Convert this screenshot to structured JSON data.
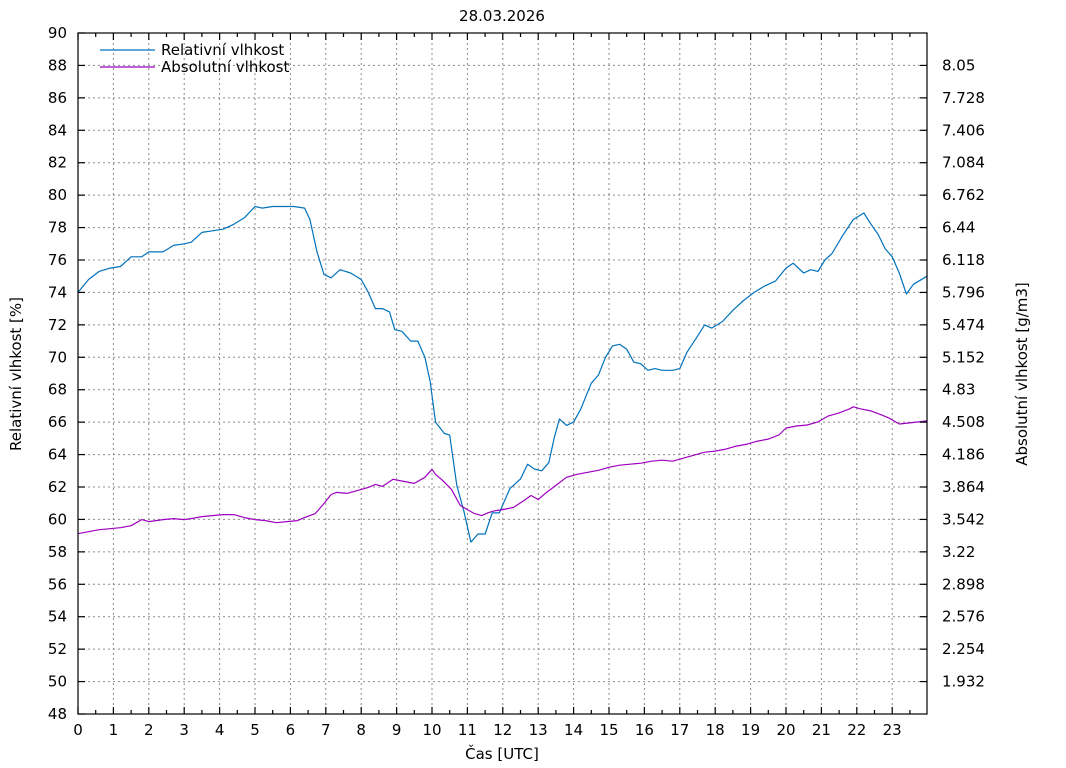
{
  "chart_data": {
    "type": "line",
    "title": "28.03.2026",
    "xlabel": "Čas [UTC]",
    "ylabel": "Relativní vlhkost [%]",
    "y2label": "Absolutní vlhkost [g/m3]",
    "xlim": [
      0,
      23.983
    ],
    "ylim": [
      48,
      90
    ],
    "y2lim": [
      1.61,
      8.372
    ],
    "grid": true,
    "legend_position": "top-left",
    "x_ticks": [
      "0",
      "1",
      "2",
      "3",
      "4",
      "5",
      "6",
      "7",
      "8",
      "9",
      "10",
      "11",
      "12",
      "13",
      "14",
      "15",
      "16",
      "17",
      "18",
      "19",
      "20",
      "21",
      "22",
      "23"
    ],
    "y_ticks": [
      "48",
      "50",
      "52",
      "54",
      "56",
      "58",
      "60",
      "62",
      "64",
      "66",
      "68",
      "70",
      "72",
      "74",
      "76",
      "78",
      "80",
      "82",
      "84",
      "86",
      "88",
      "90"
    ],
    "y2_ticks": [
      "1.932",
      "2.254",
      "2.576",
      "2.898",
      "3.22",
      "3.542",
      "3.864",
      "4.186",
      "4.508",
      "4.83",
      "5.152",
      "5.474",
      "5.796",
      "6.118",
      "6.44",
      "6.762",
      "7.084",
      "7.406",
      "7.728",
      "8.05"
    ],
    "series": [
      {
        "name": "Relativní vlhkost",
        "color": "#0072bd",
        "axis": "left",
        "x": [
          0,
          0.3,
          0.6,
          0.9,
          1.2,
          1.5,
          1.8,
          2.0,
          2.4,
          2.7,
          3.0,
          3.2,
          3.5,
          3.8,
          4.1,
          4.4,
          4.7,
          5.0,
          5.2,
          5.5,
          5.8,
          6.1,
          6.4,
          6.55,
          6.75,
          6.95,
          7.15,
          7.4,
          7.7,
          8.0,
          8.2,
          8.4,
          8.6,
          8.8,
          8.95,
          9.15,
          9.4,
          9.6,
          9.8,
          9.95,
          10.1,
          10.35,
          10.5,
          10.7,
          10.9,
          11.1,
          11.3,
          11.5,
          11.7,
          11.9,
          12.2,
          12.5,
          12.7,
          12.9,
          13.1,
          13.3,
          13.45,
          13.6,
          13.8,
          14.0,
          14.2,
          14.5,
          14.7,
          14.9,
          15.1,
          15.3,
          15.5,
          15.7,
          15.9,
          16.1,
          16.3,
          16.5,
          16.8,
          17.0,
          17.2,
          17.5,
          17.7,
          17.9,
          18.2,
          18.5,
          18.8,
          19.1,
          19.4,
          19.7,
          20.0,
          20.2,
          20.5,
          20.7,
          20.9,
          21.1,
          21.3,
          21.6,
          21.9,
          22.2,
          22.4,
          22.6,
          22.8,
          23.0,
          23.2,
          23.4,
          23.6,
          23.983
        ],
        "y": [
          74.0,
          74.8,
          75.3,
          75.5,
          75.6,
          76.2,
          76.2,
          76.5,
          76.5,
          76.9,
          77.0,
          77.1,
          77.7,
          77.8,
          77.9,
          78.2,
          78.6,
          79.3,
          79.2,
          79.3,
          79.3,
          79.3,
          79.2,
          78.5,
          76.5,
          75.1,
          74.9,
          75.4,
          75.2,
          74.8,
          74.0,
          73.0,
          73.0,
          72.8,
          71.7,
          71.6,
          71.0,
          71.0,
          70.0,
          68.5,
          66.0,
          65.3,
          65.2,
          62.1,
          60.5,
          58.6,
          59.1,
          59.1,
          60.4,
          60.4,
          61.9,
          62.5,
          63.4,
          63.1,
          63.0,
          63.5,
          65.0,
          66.2,
          65.8,
          66.0,
          66.8,
          68.4,
          68.9,
          70.0,
          70.7,
          70.8,
          70.5,
          69.7,
          69.6,
          69.2,
          69.3,
          69.2,
          69.2,
          69.3,
          70.3,
          71.3,
          72.0,
          71.8,
          72.2,
          72.9,
          73.5,
          74.0,
          74.4,
          74.7,
          75.5,
          75.8,
          75.2,
          75.4,
          75.3,
          76.0,
          76.4,
          77.5,
          78.5,
          78.9,
          78.2,
          77.6,
          76.7,
          76.2,
          75.2,
          73.9,
          74.5,
          75.0
        ]
      },
      {
        "name": "Absolutní vlhkost",
        "color": "#9f00bf",
        "axis": "right",
        "x": [
          0,
          0.3,
          0.6,
          0.9,
          1.2,
          1.5,
          1.8,
          2.0,
          2.4,
          2.7,
          3.0,
          3.2,
          3.5,
          3.8,
          4.1,
          4.4,
          4.7,
          5.0,
          5.3,
          5.6,
          5.9,
          6.2,
          6.4,
          6.7,
          6.95,
          7.15,
          7.3,
          7.6,
          7.9,
          8.2,
          8.4,
          8.6,
          8.9,
          9.2,
          9.5,
          9.8,
          10.0,
          10.1,
          10.3,
          10.55,
          10.8,
          11.0,
          11.2,
          11.4,
          11.6,
          11.8,
          12.0,
          12.3,
          12.6,
          12.8,
          13.0,
          13.2,
          13.5,
          13.8,
          14.1,
          14.4,
          14.7,
          15.0,
          15.3,
          15.6,
          15.9,
          16.2,
          16.5,
          16.8,
          17.1,
          17.4,
          17.7,
          18.0,
          18.3,
          18.6,
          18.9,
          19.2,
          19.5,
          19.8,
          20.0,
          20.3,
          20.6,
          20.9,
          21.2,
          21.5,
          21.8,
          21.9,
          22.1,
          22.4,
          22.7,
          22.9,
          23.2,
          23.5,
          23.983
        ],
        "y": [
          3.4,
          3.42,
          3.44,
          3.45,
          3.46,
          3.48,
          3.54,
          3.52,
          3.54,
          3.55,
          3.54,
          3.55,
          3.57,
          3.58,
          3.59,
          3.59,
          3.56,
          3.54,
          3.53,
          3.51,
          3.52,
          3.53,
          3.56,
          3.6,
          3.7,
          3.79,
          3.81,
          3.8,
          3.83,
          3.86,
          3.89,
          3.87,
          3.94,
          3.92,
          3.9,
          3.96,
          4.04,
          3.99,
          3.93,
          3.84,
          3.68,
          3.64,
          3.6,
          3.58,
          3.61,
          3.63,
          3.64,
          3.66,
          3.73,
          3.78,
          3.74,
          3.8,
          3.88,
          3.96,
          3.99,
          4.01,
          4.03,
          4.06,
          4.08,
          4.09,
          4.1,
          4.12,
          4.13,
          4.12,
          4.15,
          4.18,
          4.21,
          4.22,
          4.24,
          4.27,
          4.29,
          4.32,
          4.34,
          4.38,
          4.45,
          4.47,
          4.48,
          4.51,
          4.57,
          4.6,
          4.64,
          4.66,
          4.64,
          4.62,
          4.58,
          4.55,
          4.49,
          4.5,
          4.52
        ]
      }
    ]
  }
}
